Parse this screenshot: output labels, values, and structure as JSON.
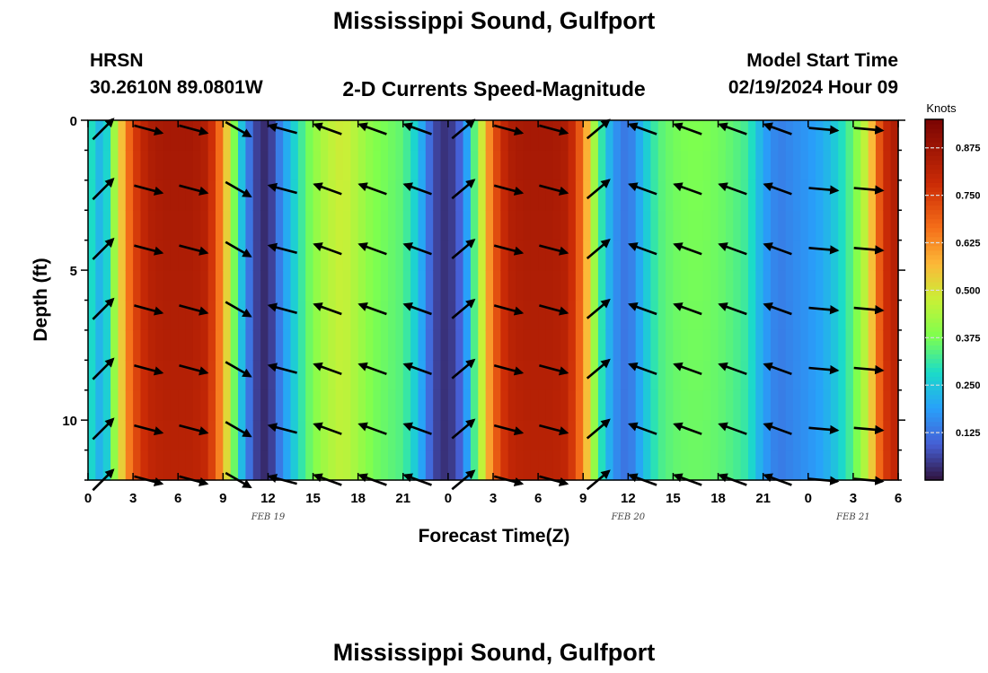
{
  "page": {
    "title": "Mississippi Sound, Gulfport",
    "station_code": "HRSN",
    "station_coords": "30.2610N  89.0801W",
    "product": "2-D Currents Speed-Magnitude",
    "model_start_label": "Model Start Time",
    "model_start_value": "02/19/2024 Hour 09",
    "repeat_title": "Mississippi Sound, Gulfport"
  },
  "chart_data": {
    "type": "heatmap",
    "title": "2-D Currents Speed-Magnitude",
    "xlabel": "Forecast Time(Z)",
    "ylabel": "Depth (ft)",
    "x_range_hours": [
      0,
      54
    ],
    "y_range_ft": [
      0,
      12
    ],
    "y_inverted": true,
    "x_tick_labels": [
      "0",
      "3",
      "6",
      "9",
      "12",
      "15",
      "18",
      "21",
      "0",
      "3",
      "6",
      "9",
      "12",
      "15",
      "18",
      "21",
      "0",
      "3",
      "6"
    ],
    "date_labels": [
      {
        "hour": 12,
        "label": "FEB 19"
      },
      {
        "hour": 36,
        "label": "FEB 20"
      },
      {
        "hour": 51,
        "label": "FEB 21"
      }
    ],
    "y_tick_labels": [
      "0",
      "5",
      "10"
    ],
    "y_tick_values": [
      0,
      5,
      10
    ],
    "colorbar": {
      "label": "Knots",
      "range": [
        0,
        0.95
      ],
      "tick_values": [
        0.125,
        0.25,
        0.375,
        0.5,
        0.625,
        0.75,
        0.875
      ],
      "tick_labels": [
        "0.125",
        "0.250",
        "0.375",
        "0.500",
        "0.625",
        "0.750",
        "0.875"
      ]
    },
    "speed_profile_knots": [
      [
        0,
        0.32
      ],
      [
        1,
        0.2
      ],
      [
        2,
        0.5
      ],
      [
        3,
        0.74
      ],
      [
        4,
        0.84
      ],
      [
        5,
        0.86
      ],
      [
        6,
        0.86
      ],
      [
        7,
        0.86
      ],
      [
        8,
        0.83
      ],
      [
        9,
        0.62
      ],
      [
        10,
        0.3
      ],
      [
        11,
        0.07
      ],
      [
        12,
        0.02
      ],
      [
        13,
        0.18
      ],
      [
        14,
        0.3
      ],
      [
        15,
        0.4
      ],
      [
        16,
        0.46
      ],
      [
        17,
        0.49
      ],
      [
        18,
        0.44
      ],
      [
        19,
        0.39
      ],
      [
        20,
        0.37
      ],
      [
        21,
        0.35
      ],
      [
        22,
        0.25
      ],
      [
        23,
        0.07
      ],
      [
        24,
        0.03
      ],
      [
        25,
        0.12
      ],
      [
        26,
        0.42
      ],
      [
        27,
        0.7
      ],
      [
        28,
        0.84
      ],
      [
        29,
        0.86
      ],
      [
        30,
        0.86
      ],
      [
        31,
        0.86
      ],
      [
        32,
        0.84
      ],
      [
        33,
        0.66
      ],
      [
        34,
        0.35
      ],
      [
        35,
        0.18
      ],
      [
        36,
        0.12
      ],
      [
        37,
        0.24
      ],
      [
        38,
        0.34
      ],
      [
        39,
        0.37
      ],
      [
        40,
        0.38
      ],
      [
        41,
        0.38
      ],
      [
        42,
        0.37
      ],
      [
        43,
        0.35
      ],
      [
        44,
        0.32
      ],
      [
        45,
        0.2
      ],
      [
        46,
        0.14
      ],
      [
        47,
        0.16
      ],
      [
        48,
        0.18
      ],
      [
        49,
        0.21
      ],
      [
        50,
        0.27
      ],
      [
        51,
        0.36
      ],
      [
        52,
        0.5
      ],
      [
        53,
        0.78
      ],
      [
        54,
        0.86
      ]
    ],
    "arrow_depths_ft": [
      0.3,
      2.3,
      4.3,
      6.3,
      8.3,
      10.3,
      12.0
    ],
    "arrow_hours": [
      1,
      4,
      7,
      10,
      13,
      16,
      19,
      22,
      25,
      28,
      31,
      34,
      37,
      40,
      43,
      46,
      49,
      52
    ],
    "arrow_direction_deg": [
      -45,
      15,
      15,
      30,
      195,
      200,
      200,
      200,
      -40,
      15,
      15,
      -40,
      200,
      200,
      200,
      200,
      5,
      5
    ],
    "current_colors": {
      "low": "#30123b",
      "mid": "#7eff4e",
      "high": "#7a0403"
    }
  }
}
